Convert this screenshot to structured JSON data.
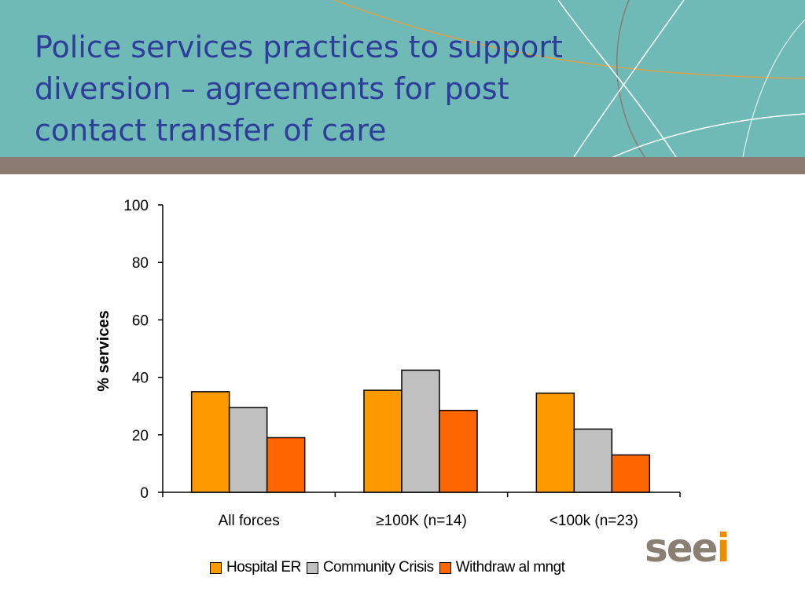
{
  "slide": {
    "title": "Police services practices to support\ndiversion – agreements for post\ncontact transfer of care",
    "logo_main": "see",
    "logo_accent": "i"
  },
  "colors": {
    "header_bg": "#6fbab6",
    "band": "#8b7b71",
    "title": "#2e3d9a",
    "logo_main": "#8a7f73",
    "logo_accent": "#f08c00"
  },
  "chart_data": {
    "type": "bar",
    "categories": [
      "All forces",
      "≥100K (n=14)",
      "<100k (n=23)"
    ],
    "series": [
      {
        "name": "Hospital ER",
        "color": "#ff9900",
        "values": [
          35,
          35.5,
          34.5
        ]
      },
      {
        "name": "Community Crisis",
        "color": "#c0c0c0",
        "values": [
          29.5,
          42.5,
          22
        ]
      },
      {
        "name": "Withdraw al mngt",
        "color": "#ff6600",
        "values": [
          19,
          28.5,
          13
        ]
      }
    ],
    "title": "",
    "xlabel": "",
    "ylabel": "% services",
    "ylim": [
      0,
      100
    ],
    "yticks": [
      0,
      20,
      40,
      60,
      80,
      100
    ],
    "grid": false,
    "legend": "bottom"
  }
}
